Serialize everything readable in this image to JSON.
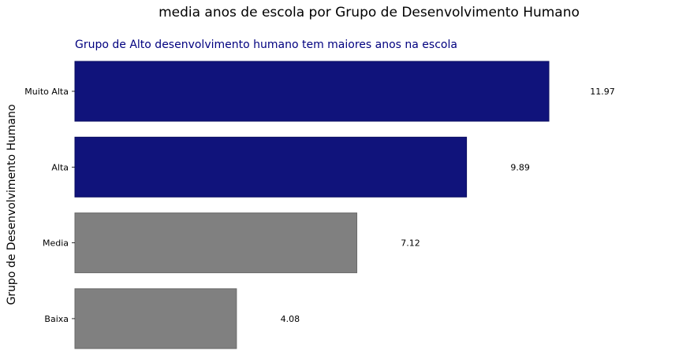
{
  "chart_data": {
    "type": "bar",
    "orientation": "horizontal",
    "title": "media anos de escola por Grupo de Desenvolvimento Humano",
    "subtitle": "Grupo de Alto desenvolvimento humano tem maiores anos na escola",
    "xlabel": "",
    "ylabel": "Grupo de Desenvolvimento Humano",
    "categories": [
      "Muito Alta",
      "Alta",
      "Media",
      "Baixa"
    ],
    "values": [
      11.97,
      9.89,
      7.12,
      4.08
    ],
    "value_labels": [
      "11.97",
      "9.89",
      "7.12",
      "4.08"
    ],
    "xlim": [
      0,
      14.16
    ],
    "grid": false,
    "colors": {
      "highlight": "#10137b",
      "default": "#808080",
      "subtitle": "#00007f"
    },
    "highlighted": [
      true,
      true,
      false,
      false
    ]
  }
}
